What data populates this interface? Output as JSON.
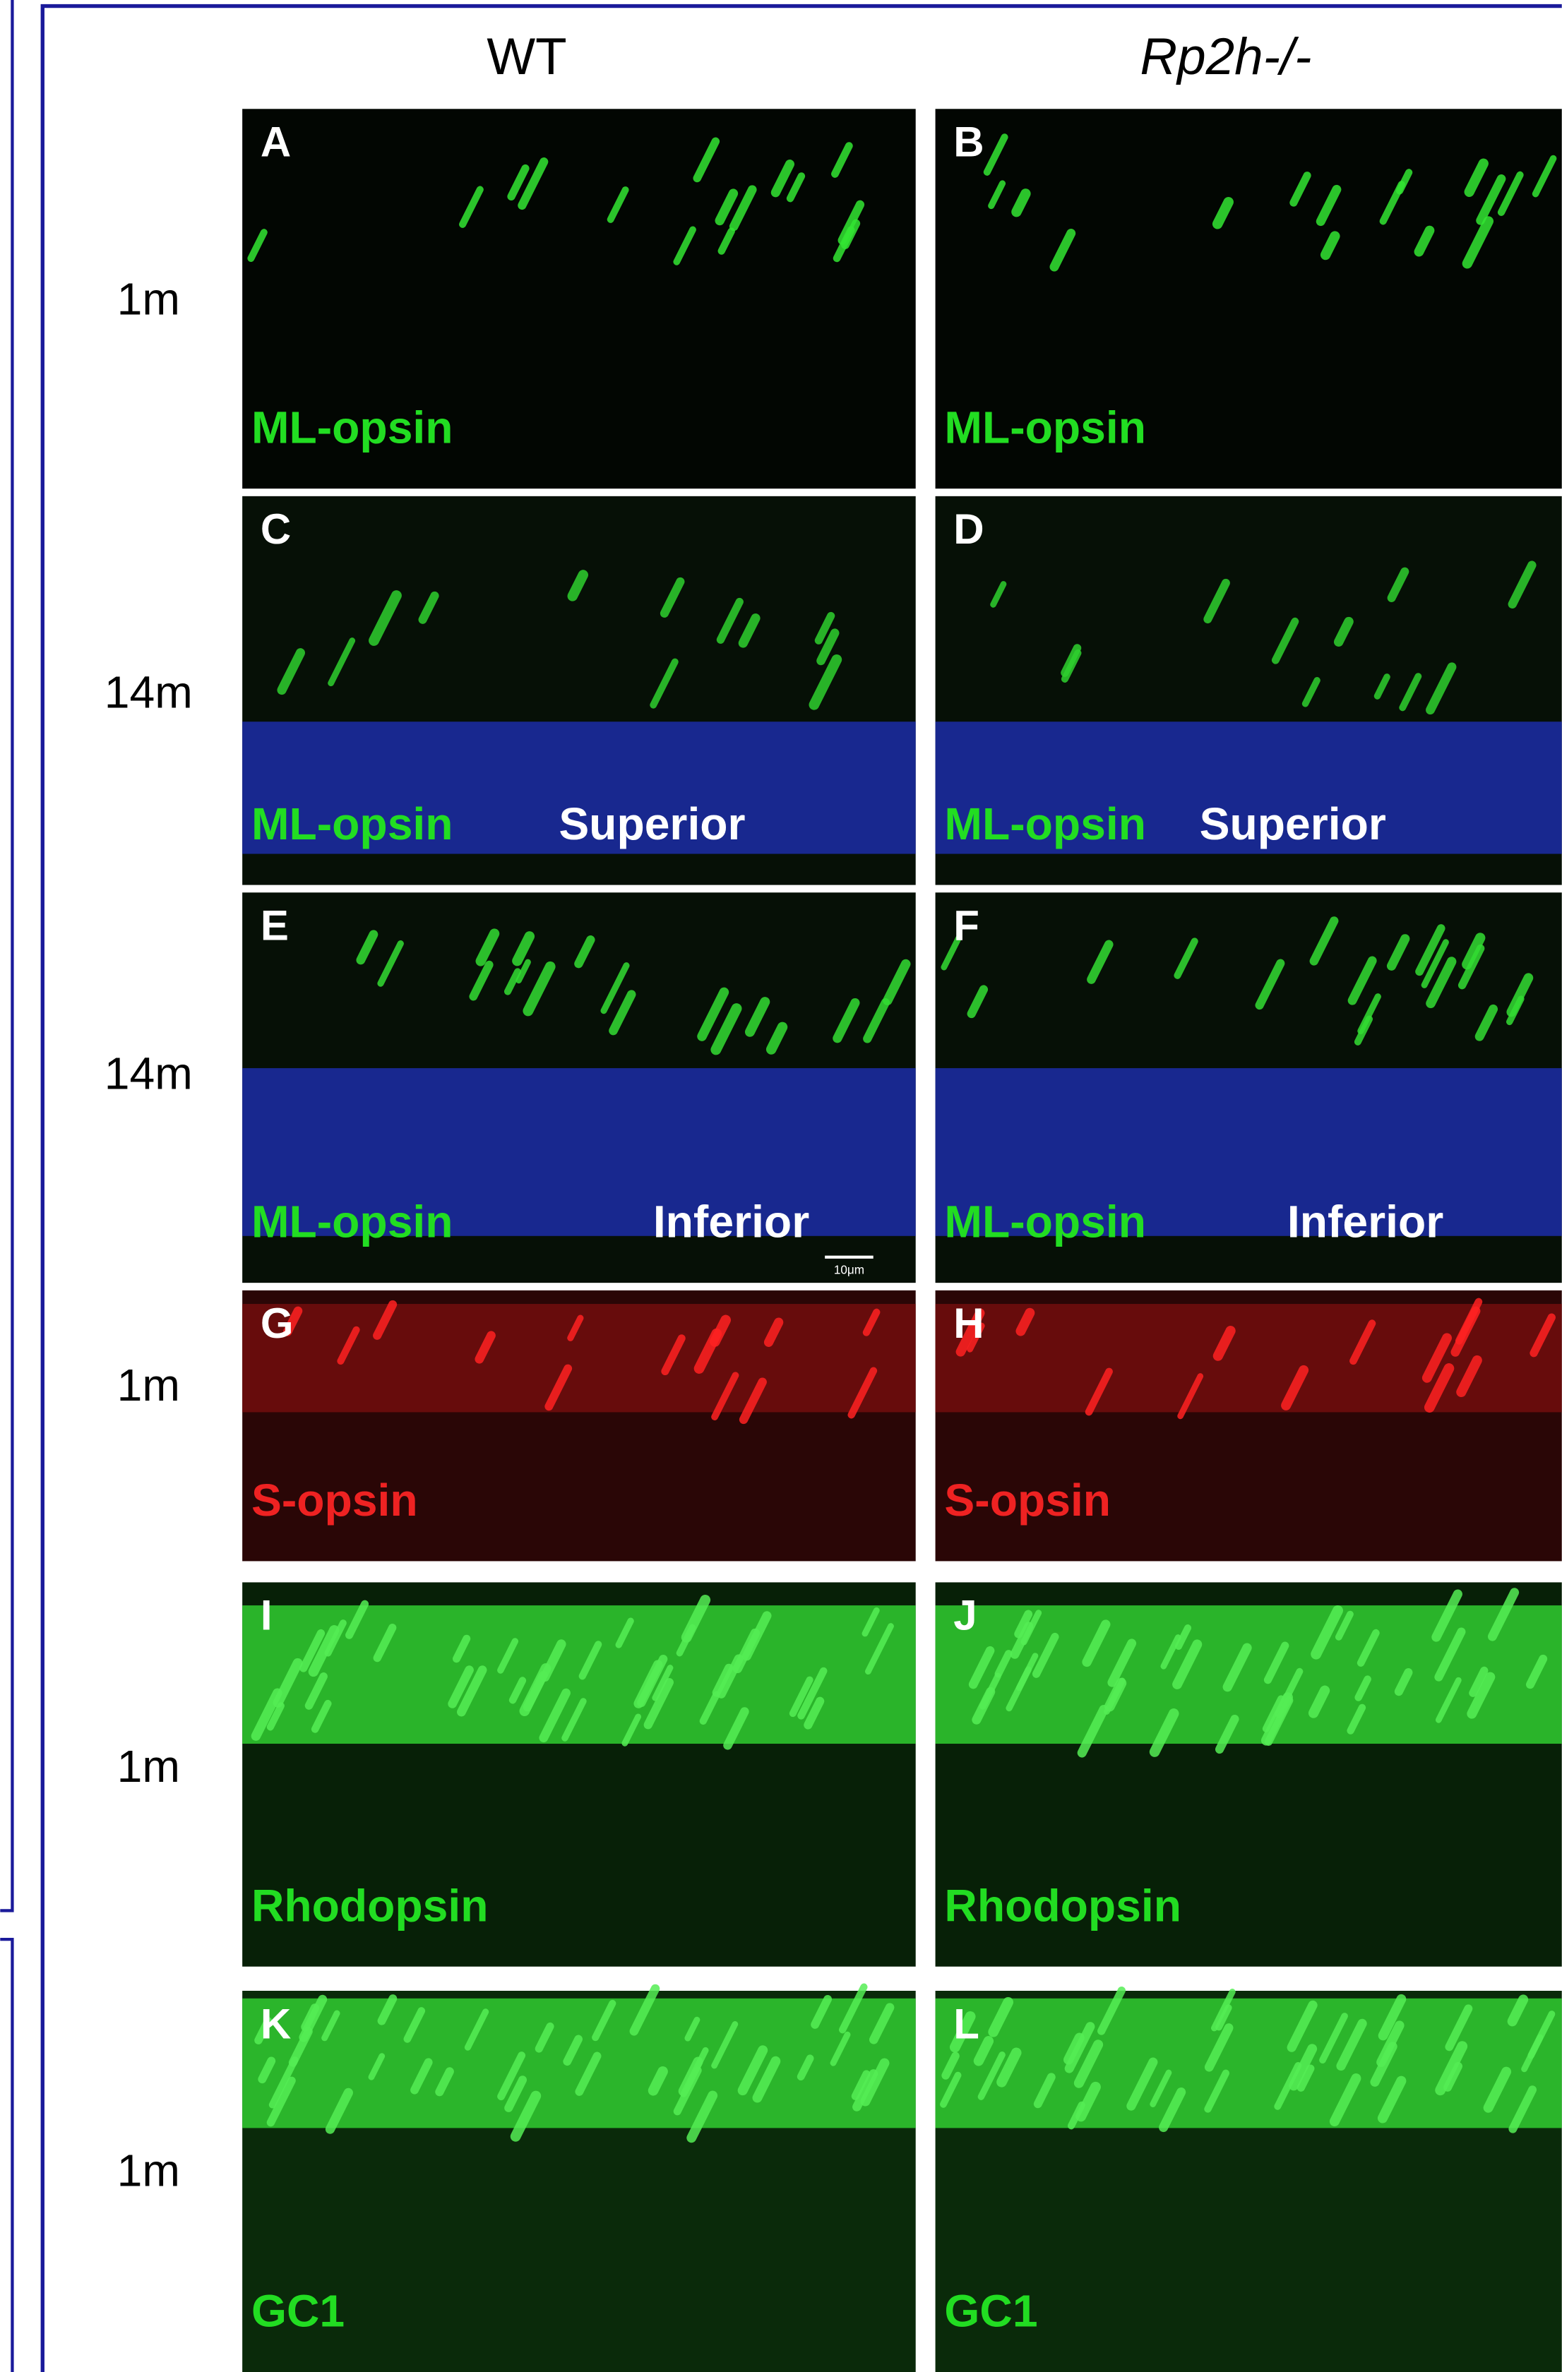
{
  "columns": [
    "WT",
    "Rp2h-/-"
  ],
  "rows": [
    {
      "label": "1m",
      "panels": [
        {
          "letter": "A",
          "stain": "ML-opsin"
        },
        {
          "letter": "B",
          "stain": "ML-opsin"
        }
      ]
    },
    {
      "label": "14m",
      "panels": [
        {
          "letter": "C",
          "stain": "ML-opsin",
          "region": "Superior"
        },
        {
          "letter": "D",
          "stain": "ML-opsin",
          "region": "Superior"
        }
      ]
    },
    {
      "label": "14m",
      "panels": [
        {
          "letter": "E",
          "stain": "ML-opsin",
          "region": "Inferior",
          "scale": "10μm"
        },
        {
          "letter": "F",
          "stain": "ML-opsin",
          "region": "Inferior"
        }
      ]
    },
    {
      "label": "1m",
      "panels": [
        {
          "letter": "G",
          "stain": "S-opsin"
        },
        {
          "letter": "H",
          "stain": "S-opsin"
        }
      ]
    },
    {
      "label": "1m",
      "panels": [
        {
          "letter": "I",
          "stain": "Rhodopsin"
        },
        {
          "letter": "J",
          "stain": "Rhodopsin"
        }
      ]
    },
    {
      "label": "1m",
      "panels": [
        {
          "letter": "K",
          "stain": "GC1"
        },
        {
          "letter": "L",
          "stain": "GC1"
        }
      ]
    }
  ]
}
